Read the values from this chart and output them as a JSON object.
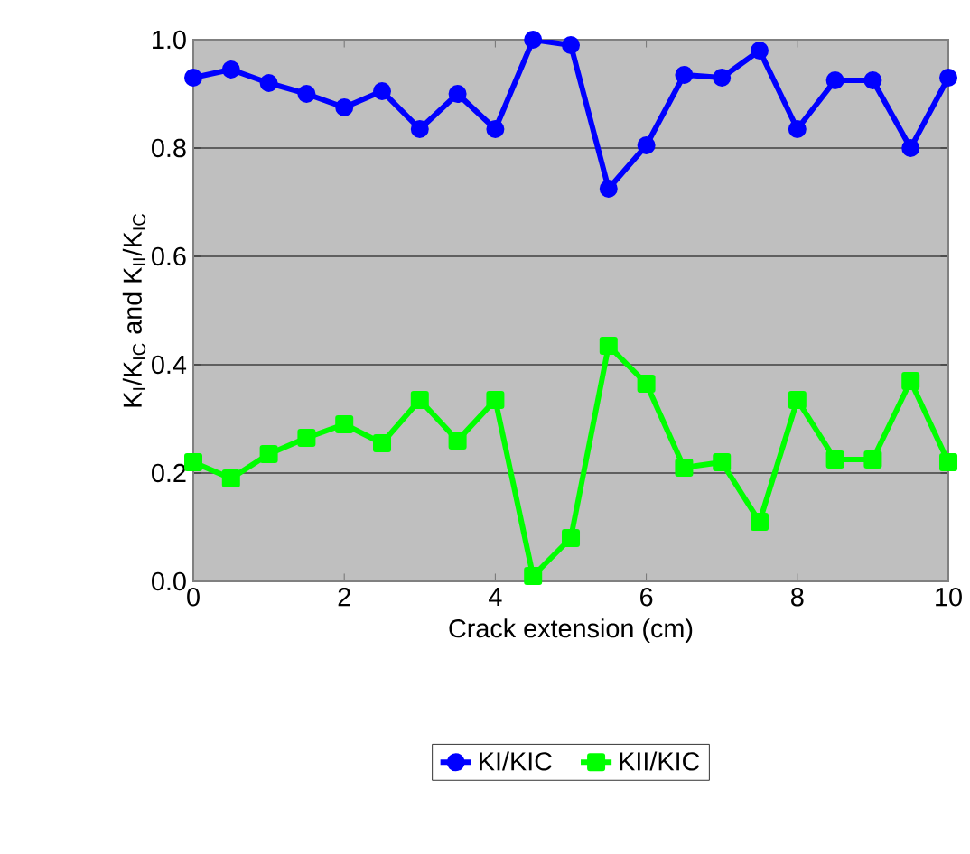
{
  "chart_data": {
    "type": "line",
    "xlabel": "Crack extension (cm)",
    "ylabel": "K$_{I}$/K$_{IC}$ and K$_{II}$/K$_{IC}$",
    "x": [
      0,
      0.5,
      1,
      1.5,
      2,
      2.5,
      3,
      3.5,
      4,
      4.5,
      5,
      5.5,
      6,
      6.5,
      7,
      7.5,
      8,
      8.5,
      9,
      9.5,
      10
    ],
    "series": [
      {
        "name": "KI/KIC",
        "color": "#0000ff",
        "marker": "circle",
        "values": [
          0.93,
          0.945,
          0.92,
          0.9,
          0.875,
          0.905,
          0.835,
          0.9,
          0.835,
          1.0,
          0.99,
          0.725,
          0.805,
          0.935,
          0.93,
          0.98,
          0.835,
          0.925,
          0.925,
          0.8,
          0.93
        ]
      },
      {
        "name": "KII/KIC",
        "color": "#00ff00",
        "marker": "square",
        "values": [
          0.22,
          0.19,
          0.235,
          0.265,
          0.29,
          0.255,
          0.335,
          0.26,
          0.335,
          0.01,
          0.08,
          0.435,
          0.365,
          0.21,
          0.22,
          0.11,
          0.335,
          0.225,
          0.225,
          0.37,
          0.22
        ]
      }
    ],
    "xlim": [
      0,
      10
    ],
    "ylim": [
      0,
      1
    ],
    "xticks": [
      {
        "value": 0,
        "label": "0"
      },
      {
        "value": 2,
        "label": "2"
      },
      {
        "value": 4,
        "label": "4"
      },
      {
        "value": 6,
        "label": "6"
      },
      {
        "value": 8,
        "label": "8"
      },
      {
        "value": 10,
        "label": "10"
      }
    ],
    "yticks": [
      {
        "value": 0,
        "label": "0.0"
      },
      {
        "value": 0.2,
        "label": "0.2"
      },
      {
        "value": 0.4,
        "label": "0.4"
      },
      {
        "value": 0.6,
        "label": "0.6"
      },
      {
        "value": 0.8,
        "label": "0.8"
      },
      {
        "value": 1,
        "label": "1.0"
      }
    ],
    "grid": "y",
    "legend": "bottom",
    "line_style": "solid"
  }
}
